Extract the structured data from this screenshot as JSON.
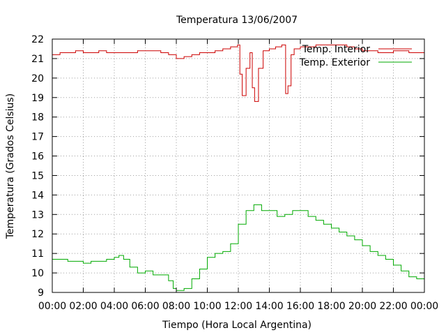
{
  "chart_data": {
    "type": "line",
    "title": "Temperatura 13/06/2007",
    "xlabel": "Tiempo (Hora Local Argentina)",
    "ylabel": "Temperatura (Grados Celsius)",
    "xlim": [
      0,
      24
    ],
    "ylim": [
      9,
      22
    ],
    "x_ticks": [
      "00:00",
      "02:00",
      "04:00",
      "06:00",
      "08:00",
      "10:00",
      "12:00",
      "14:00",
      "16:00",
      "18:00",
      "20:00",
      "22:00",
      "00:00"
    ],
    "y_ticks": [
      "9",
      "10",
      "11",
      "12",
      "13",
      "14",
      "15",
      "16",
      "17",
      "18",
      "19",
      "20",
      "21",
      "22"
    ],
    "grid": true,
    "legend_position": "top-right",
    "x_unit": "hours since 00:00",
    "series": [
      {
        "name": "Temp. Interior",
        "color": "#cc0000",
        "x": [
          0,
          0.5,
          1,
          1.5,
          2,
          2.5,
          3,
          3.5,
          4,
          4.5,
          5,
          5.5,
          6,
          6.5,
          7,
          7.5,
          8,
          8.5,
          9,
          9.5,
          10,
          10.5,
          11,
          11.5,
          11.95,
          12.1,
          12.25,
          12.5,
          12.75,
          12.9,
          13.05,
          13.3,
          13.6,
          14,
          14.4,
          14.8,
          15.05,
          15.2,
          15.4,
          15.6,
          16,
          16.5,
          17,
          17.5,
          18,
          18.5,
          19,
          19.5,
          20,
          20.5,
          21,
          21.5,
          22,
          22.5,
          23,
          23.5,
          24
        ],
        "y": [
          21.2,
          21.3,
          21.3,
          21.4,
          21.3,
          21.3,
          21.4,
          21.3,
          21.3,
          21.3,
          21.3,
          21.4,
          21.4,
          21.4,
          21.3,
          21.2,
          21.0,
          21.1,
          21.2,
          21.3,
          21.3,
          21.4,
          21.5,
          21.6,
          21.7,
          20.2,
          19.1,
          20.5,
          21.3,
          19.5,
          18.8,
          20.5,
          21.4,
          21.5,
          21.6,
          21.7,
          19.2,
          19.6,
          21.2,
          21.5,
          21.6,
          21.6,
          21.7,
          21.7,
          21.7,
          21.7,
          21.6,
          21.5,
          21.4,
          21.4,
          21.3,
          21.3,
          21.4,
          21.4,
          21.3,
          21.3,
          21.3
        ]
      },
      {
        "name": "Temp. Exterior",
        "color": "#00aa00",
        "x": [
          0,
          0.5,
          1,
          1.5,
          2,
          2.5,
          3,
          3.5,
          4,
          4.3,
          4.6,
          5,
          5.5,
          6,
          6.5,
          7,
          7.5,
          7.8,
          8,
          8.5,
          9,
          9.5,
          10,
          10.5,
          11,
          11.5,
          12,
          12.5,
          13,
          13.5,
          14,
          14.5,
          15,
          15.5,
          16,
          16.5,
          17,
          17.5,
          18,
          18.5,
          19,
          19.5,
          20,
          20.5,
          21,
          21.5,
          22,
          22.5,
          23,
          23.5,
          24
        ],
        "y": [
          10.7,
          10.7,
          10.6,
          10.6,
          10.5,
          10.6,
          10.6,
          10.7,
          10.8,
          10.9,
          10.7,
          10.3,
          10.0,
          10.1,
          9.9,
          9.9,
          9.6,
          9.2,
          9.1,
          9.2,
          9.7,
          10.2,
          10.8,
          11.0,
          11.1,
          11.5,
          12.5,
          13.2,
          13.5,
          13.2,
          13.2,
          12.9,
          13.0,
          13.2,
          13.2,
          12.9,
          12.7,
          12.5,
          12.3,
          12.1,
          11.9,
          11.7,
          11.4,
          11.1,
          10.9,
          10.7,
          10.4,
          10.1,
          9.8,
          9.7,
          9.6
        ]
      }
    ]
  }
}
